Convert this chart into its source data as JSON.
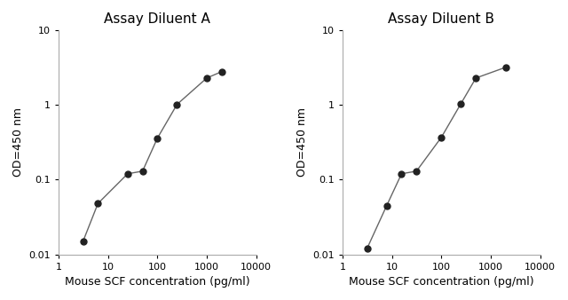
{
  "panel_A": {
    "title": "Assay Diluent A",
    "x": [
      3.125,
      6.25,
      25,
      50,
      100,
      250,
      1000,
      2000
    ],
    "y": [
      0.015,
      0.048,
      0.12,
      0.13,
      0.36,
      1.02,
      2.3,
      2.8
    ],
    "xlabel": "Mouse SCF concentration (pg/ml)",
    "ylabel": "OD=450 nm",
    "xlim": [
      1,
      10000
    ],
    "ylim": [
      0.01,
      10
    ]
  },
  "panel_B": {
    "title": "Assay Diluent B",
    "x": [
      3.125,
      7.8,
      15.6,
      31.25,
      100,
      250,
      500,
      2000
    ],
    "y": [
      0.012,
      0.045,
      0.12,
      0.13,
      0.37,
      1.05,
      2.3,
      3.2
    ],
    "xlabel": "Mouse SCF concentration (pg/ml)",
    "ylabel": "OD=450 nm",
    "xlim": [
      1,
      10000
    ],
    "ylim": [
      0.01,
      10
    ]
  },
  "line_color": "#666666",
  "marker_color": "#222222",
  "bg_color": "#ffffff",
  "plot_bg_color": "#ffffff",
  "title_fontsize": 11,
  "label_fontsize": 9,
  "tick_fontsize": 8,
  "marker_size": 5,
  "line_width": 1.0
}
